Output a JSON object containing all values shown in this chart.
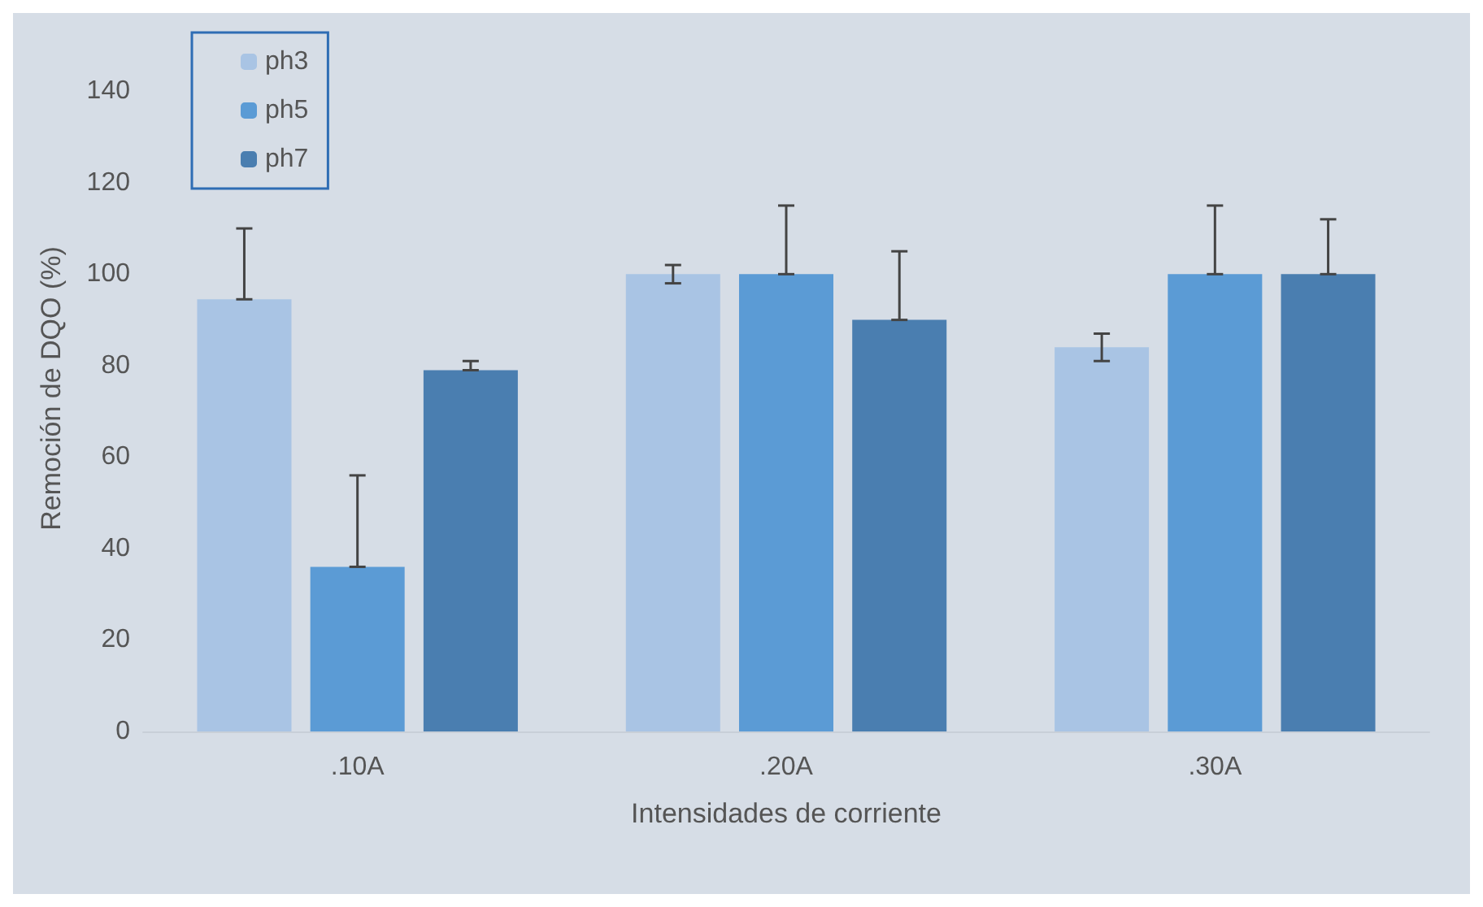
{
  "chart_data": {
    "type": "bar",
    "xlabel": "Intensidades de corriente",
    "ylabel": "Remoción de DQO (%)",
    "categories": [
      ".10A",
      ".20A",
      ".30A"
    ],
    "series": [
      {
        "name": "ph3",
        "color": "#a9c4e4",
        "values": [
          94.5,
          100,
          84
        ],
        "errors": [
          [
            94.5,
            110
          ],
          2,
          3
        ]
      },
      {
        "name": "ph5",
        "color": "#5b9bd5",
        "values": [
          36,
          100,
          100
        ],
        "errors": [
          [
            36,
            56
          ],
          [
            100,
            115
          ],
          [
            100,
            115
          ]
        ]
      },
      {
        "name": "ph7",
        "color": "#4a7eb0",
        "values": [
          79,
          90,
          100
        ],
        "errors": [
          [
            79,
            81
          ],
          [
            90,
            105
          ],
          [
            100,
            112
          ]
        ]
      }
    ],
    "ylim": [
      0,
      150
    ],
    "yticks": [
      0,
      20,
      40,
      60,
      80,
      100,
      120,
      140
    ],
    "grid": false,
    "legend": "top left"
  }
}
